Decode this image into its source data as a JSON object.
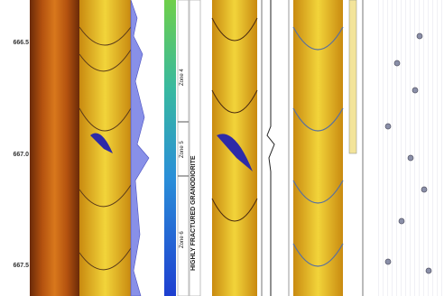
{
  "depth_labels": [
    "666.5",
    "667.0",
    "667.5"
  ],
  "zones": [
    "Zone 4",
    "Zone 5",
    "Zone 6"
  ],
  "lithology": "HIGHLY FRACTURED GRANODIORITE"
}
